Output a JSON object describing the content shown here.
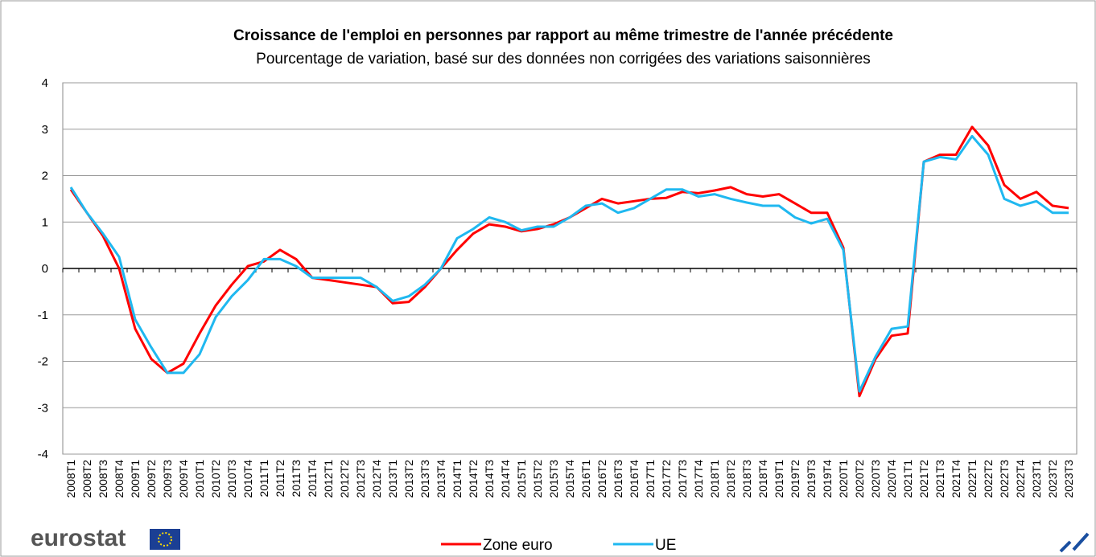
{
  "chart_data": {
    "type": "line",
    "title": "Croissance  de l'emploi en personnes  par rapport au même trimestre de l'année précédente",
    "subtitle": "Pourcentage de variation,  basé sur des données non corrigées des variations  saisonnières",
    "categories": [
      "2008T1",
      "2008T2",
      "2008T3",
      "2008T4",
      "2009T1",
      "2009T2",
      "2009T3",
      "2009T4",
      "2010T1",
      "2010T2",
      "2010T3",
      "2010T4",
      "2011T1",
      "2011T2",
      "2011T3",
      "2011T4",
      "2012T1",
      "2012T2",
      "2012T3",
      "2012T4",
      "2013T1",
      "2013T2",
      "2013T3",
      "2013T4",
      "2014T1",
      "2014T2",
      "2014T3",
      "2014T4",
      "2015T1",
      "2015T2",
      "2015T3",
      "2015T4",
      "2016T1",
      "2016T2",
      "2016T3",
      "2016T4",
      "2017T1",
      "2017T2",
      "2017T3",
      "2017T4",
      "2018T1",
      "2018T2",
      "2018T3",
      "2018T4",
      "2019T1",
      "2019T2",
      "2019T3",
      "2019T4",
      "2020T1",
      "2020T2",
      "2020T3",
      "2020T4",
      "2021T1",
      "2021T2",
      "2021T3",
      "2021T4",
      "2022T1",
      "2022T2",
      "2022T3",
      "2022T4",
      "2023T1",
      "2023T2",
      "2023T3"
    ],
    "series": [
      {
        "name": "Zone euro",
        "color": "#ff0000",
        "values": [
          1.7,
          1.2,
          0.7,
          0.0,
          -1.3,
          -1.95,
          -2.25,
          -2.05,
          -1.4,
          -0.8,
          -0.35,
          0.05,
          0.15,
          0.4,
          0.2,
          -0.2,
          -0.25,
          -0.3,
          -0.35,
          -0.4,
          -0.75,
          -0.72,
          -0.4,
          0.0,
          0.4,
          0.75,
          0.95,
          0.9,
          0.8,
          0.85,
          0.95,
          1.1,
          1.3,
          1.5,
          1.4,
          1.45,
          1.5,
          1.52,
          1.65,
          1.62,
          1.68,
          1.75,
          1.6,
          1.55,
          1.6,
          1.4,
          1.2,
          1.2,
          0.45,
          -2.75,
          -1.95,
          -1.45,
          -1.4,
          2.3,
          2.45,
          2.45,
          3.05,
          2.65,
          1.8,
          1.5,
          1.65,
          1.35,
          1.3
        ]
      },
      {
        "name": "UE",
        "color": "#1fb8f0",
        "values": [
          1.75,
          1.2,
          0.75,
          0.25,
          -1.1,
          -1.7,
          -2.25,
          -2.25,
          -1.85,
          -1.05,
          -0.6,
          -0.25,
          0.2,
          0.2,
          0.05,
          -0.2,
          -0.2,
          -0.2,
          -0.2,
          -0.4,
          -0.7,
          -0.6,
          -0.35,
          0.0,
          0.65,
          0.85,
          1.1,
          1.0,
          0.82,
          0.9,
          0.9,
          1.1,
          1.35,
          1.4,
          1.2,
          1.3,
          1.5,
          1.7,
          1.7,
          1.55,
          1.6,
          1.5,
          1.42,
          1.35,
          1.35,
          1.1,
          0.97,
          1.07,
          0.4,
          -2.65,
          -1.9,
          -1.3,
          -1.25,
          2.3,
          2.4,
          2.35,
          2.85,
          2.45,
          1.5,
          1.35,
          1.45,
          1.2,
          1.2
        ]
      }
    ],
    "ylim": [
      -4,
      4
    ],
    "yticks": [
      -4,
      -3,
      -2,
      -1,
      0,
      1,
      2,
      3,
      4
    ],
    "grid": true,
    "legend": "bottom",
    "logo": "eurostat"
  }
}
